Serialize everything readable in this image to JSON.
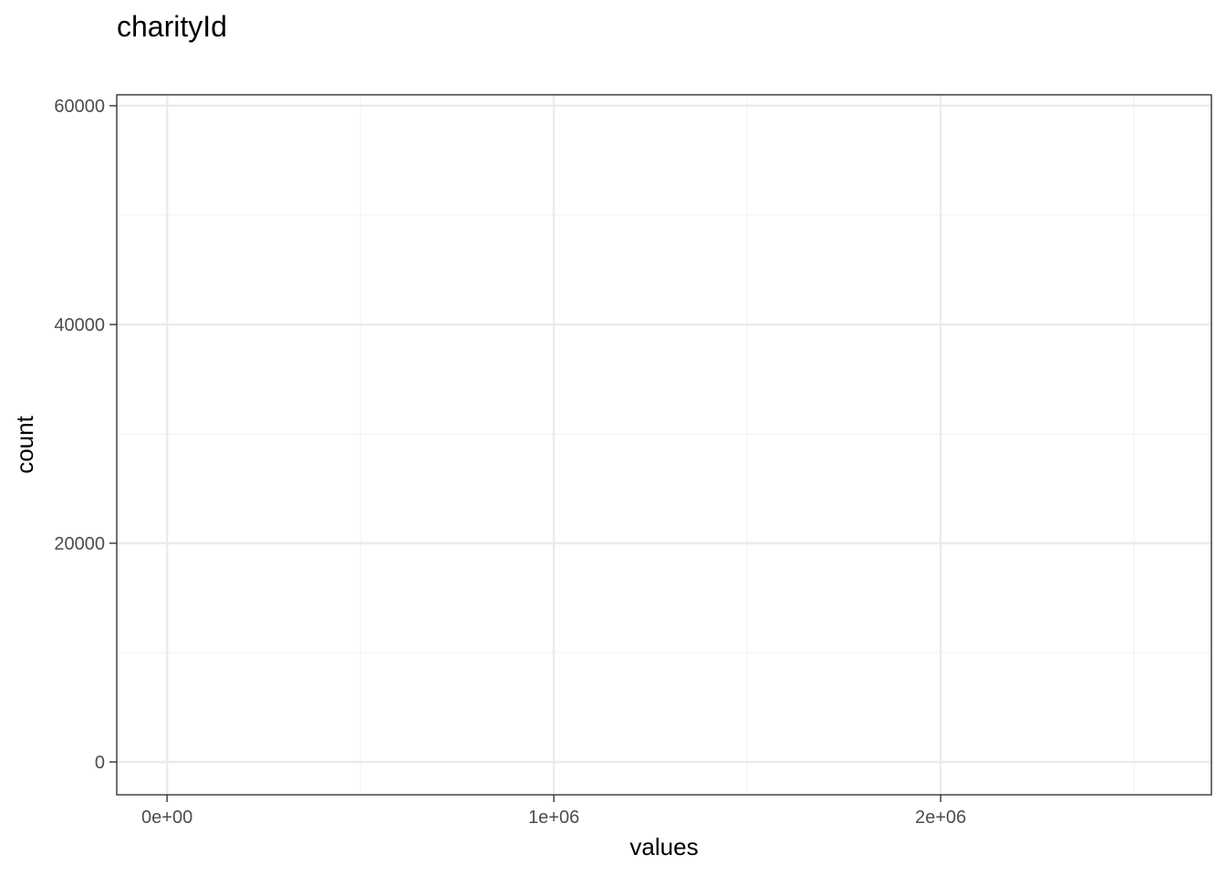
{
  "chart_data": {
    "type": "bar",
    "title": "charityId",
    "xlabel": "values",
    "ylabel": "count",
    "xlim": [
      -130000,
      2700000
    ],
    "ylim": [
      -3000,
      61000
    ],
    "x_ticks": [
      {
        "value": 0,
        "label": "0e+00"
      },
      {
        "value": 1000000,
        "label": "1e+06"
      },
      {
        "value": 2000000,
        "label": "2e+06"
      }
    ],
    "x_minor_ticks": [
      500000,
      1500000,
      2500000
    ],
    "y_ticks": [
      {
        "value": 0,
        "label": "0"
      },
      {
        "value": 20000,
        "label": "20000"
      },
      {
        "value": 40000,
        "label": "40000"
      },
      {
        "value": 60000,
        "label": "60000"
      }
    ],
    "y_minor_ticks": [
      10000,
      30000,
      50000
    ],
    "bins": [],
    "grid": true,
    "colors": {
      "background": "#ffffff",
      "panel_border": "#333333",
      "grid_major": "#ebebeb",
      "grid_minor": "#f3f3f3",
      "tick": "#333333",
      "bar_fill": "#595959"
    }
  }
}
